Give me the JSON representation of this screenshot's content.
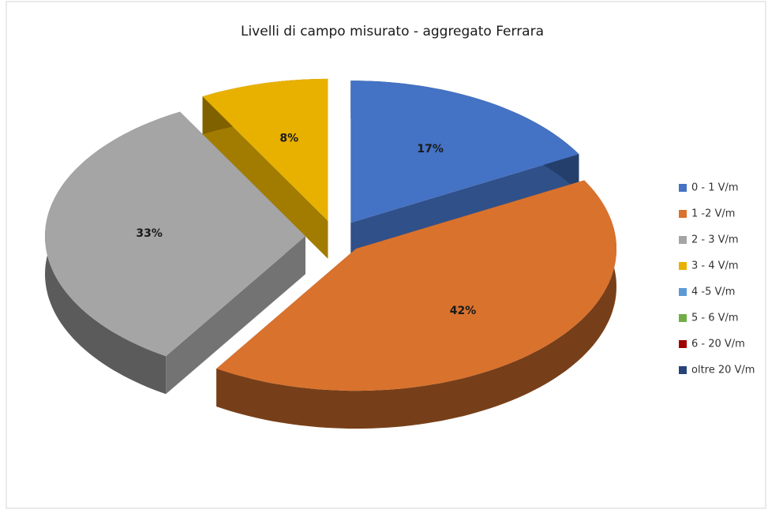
{
  "chart_data": {
    "type": "pie",
    "title": "Livelli di campo misurato - aggregato Ferrara",
    "categories": [
      "0 - 1 V/m",
      "1 -2 V/m",
      "2 - 3 V/m",
      "3 - 4 V/m",
      "4 -5 V/m",
      "5 - 6 V/m",
      "6 - 20 V/m",
      "oltre 20 V/m"
    ],
    "values": [
      17,
      42,
      33,
      8,
      0,
      0,
      0,
      0
    ],
    "value_labels": [
      "17%",
      "42%",
      "33%",
      "8%",
      null,
      null,
      null,
      null
    ],
    "colors": [
      "#4472c4",
      "#d9722d",
      "#a5a5a5",
      "#e8b100",
      "#5b9bd5",
      "#70ad47",
      "#9e0000",
      "#264478"
    ],
    "legend": "right"
  }
}
